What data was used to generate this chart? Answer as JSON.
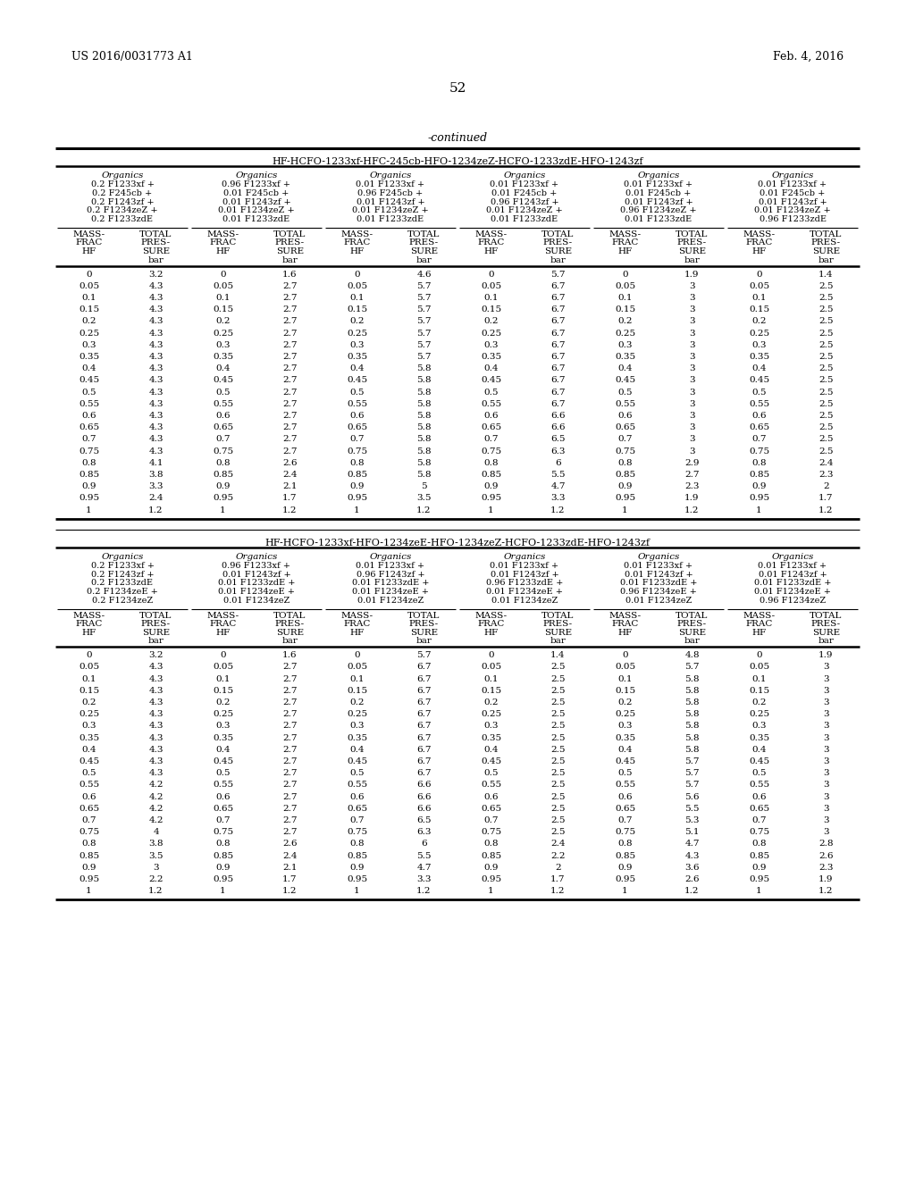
{
  "page_left": "US 2016/0031773 A1",
  "page_right": "Feb. 4, 2016",
  "page_num": "52",
  "continued": "-continued",
  "table1_title": "HF-HCFO-1233xf-HFC-245cb-HFO-1234zeZ-HCFO-1233zdE-HFO-1243zf",
  "table1_columns": [
    [
      "Organics",
      "0.2 F1233xf +",
      "0.2 F245cb +",
      "0.2 F1243zf +",
      "0.2 F1234zeZ +",
      "0.2 F1233zdE"
    ],
    [
      "Organics",
      "0.96 F1233xf +",
      "0.01 F245cb +",
      "0.01 F1243zf +",
      "0.01 F1234zeZ +",
      "0.01 F1233zdE"
    ],
    [
      "Organics",
      "0.01 F1233xf +",
      "0.96 F245cb +",
      "0.01 F1243zf +",
      "0.01 F1234zeZ +",
      "0.01 F1233zdE"
    ],
    [
      "Organics",
      "0.01 F1233xf +",
      "0.01 F245cb +",
      "0.96 F1243zf +",
      "0.01 F1234zeZ +",
      "0.01 F1233zdE"
    ],
    [
      "Organics",
      "0.01 F1233xf +",
      "0.01 F245cb +",
      "0.01 F1243zf +",
      "0.96 F1234zeZ +",
      "0.01 F1233zdE"
    ],
    [
      "Organics",
      "0.01 F1233xf +",
      "0.01 F245cb +",
      "0.01 F1243zf +",
      "0.01 F1234zeZ +",
      "0.96 F1233zdE"
    ]
  ],
  "table1_data": [
    [
      0,
      3.2,
      0,
      1.6,
      0,
      4.6,
      0,
      5.7,
      0,
      1.9,
      0,
      1.4
    ],
    [
      0.05,
      4.3,
      0.05,
      2.7,
      0.05,
      5.7,
      0.05,
      6.7,
      0.05,
      3.0,
      0.05,
      2.5
    ],
    [
      0.1,
      4.3,
      0.1,
      2.7,
      0.1,
      5.7,
      0.1,
      6.7,
      0.1,
      3.0,
      0.1,
      2.5
    ],
    [
      0.15,
      4.3,
      0.15,
      2.7,
      0.15,
      5.7,
      0.15,
      6.7,
      0.15,
      3.0,
      0.15,
      2.5
    ],
    [
      0.2,
      4.3,
      0.2,
      2.7,
      0.2,
      5.7,
      0.2,
      6.7,
      0.2,
      3.0,
      0.2,
      2.5
    ],
    [
      0.25,
      4.3,
      0.25,
      2.7,
      0.25,
      5.7,
      0.25,
      6.7,
      0.25,
      3.0,
      0.25,
      2.5
    ],
    [
      0.3,
      4.3,
      0.3,
      2.7,
      0.3,
      5.7,
      0.3,
      6.7,
      0.3,
      3.0,
      0.3,
      2.5
    ],
    [
      0.35,
      4.3,
      0.35,
      2.7,
      0.35,
      5.7,
      0.35,
      6.7,
      0.35,
      3.0,
      0.35,
      2.5
    ],
    [
      0.4,
      4.3,
      0.4,
      2.7,
      0.4,
      5.8,
      0.4,
      6.7,
      0.4,
      3.0,
      0.4,
      2.5
    ],
    [
      0.45,
      4.3,
      0.45,
      2.7,
      0.45,
      5.8,
      0.45,
      6.7,
      0.45,
      3.0,
      0.45,
      2.5
    ],
    [
      0.5,
      4.3,
      0.5,
      2.7,
      0.5,
      5.8,
      0.5,
      6.7,
      0.5,
      3.0,
      0.5,
      2.5
    ],
    [
      0.55,
      4.3,
      0.55,
      2.7,
      0.55,
      5.8,
      0.55,
      6.7,
      0.55,
      3.0,
      0.55,
      2.5
    ],
    [
      0.6,
      4.3,
      0.6,
      2.7,
      0.6,
      5.8,
      0.6,
      6.6,
      0.6,
      3.0,
      0.6,
      2.5
    ],
    [
      0.65,
      4.3,
      0.65,
      2.7,
      0.65,
      5.8,
      0.65,
      6.6,
      0.65,
      3.0,
      0.65,
      2.5
    ],
    [
      0.7,
      4.3,
      0.7,
      2.7,
      0.7,
      5.8,
      0.7,
      6.5,
      0.7,
      3.0,
      0.7,
      2.5
    ],
    [
      0.75,
      4.3,
      0.75,
      2.7,
      0.75,
      5.8,
      0.75,
      6.3,
      0.75,
      3.0,
      0.75,
      2.5
    ],
    [
      0.8,
      4.1,
      0.8,
      2.6,
      0.8,
      5.8,
      0.8,
      6.0,
      0.8,
      2.9,
      0.8,
      2.4
    ],
    [
      0.85,
      3.8,
      0.85,
      2.4,
      0.85,
      5.8,
      0.85,
      5.5,
      0.85,
      2.7,
      0.85,
      2.3
    ],
    [
      0.9,
      3.3,
      0.9,
      2.1,
      0.9,
      5.0,
      0.9,
      4.7,
      0.9,
      2.3,
      0.9,
      2.0
    ],
    [
      0.95,
      2.4,
      0.95,
      1.7,
      0.95,
      3.5,
      0.95,
      3.3,
      0.95,
      1.9,
      0.95,
      1.7
    ],
    [
      1,
      1.2,
      1,
      1.2,
      1,
      1.2,
      1,
      1.2,
      1,
      1.2,
      1,
      1.2
    ]
  ],
  "table2_title": "HF-HCFO-1233xf-HFO-1234zeE-HFO-1234zeZ-HCFO-1233zdE-HFO-1243zf",
  "table2_columns": [
    [
      "Organics",
      "0.2 F1233xf +",
      "0.2 F1243zf +",
      "0.2 F1233zdE",
      "0.2 F1234zeE +",
      "0.2 F1234zeZ"
    ],
    [
      "Organics",
      "0.96 F1233xf +",
      "0.01 F1243zf +",
      "0.01 F1233zdE +",
      "0.01 F1234zeE +",
      "0.01 F1234zeZ"
    ],
    [
      "Organics",
      "0.01 F1233xf +",
      "0.96 F1243zf +",
      "0.01 F1233zdE +",
      "0.01 F1234zeE +",
      "0.01 F1234zeZ"
    ],
    [
      "Organics",
      "0.01 F1233xf +",
      "0.01 F1243zf +",
      "0.96 F1233zdE +",
      "0.01 F1234zeE +",
      "0.01 F1234zeZ"
    ],
    [
      "Organics",
      "0.01 F1233xf +",
      "0.01 F1243zf +",
      "0.01 F1233zdE +",
      "0.96 F1234zeE +",
      "0.01 F1234zeZ"
    ],
    [
      "Organics",
      "0.01 F1233xf +",
      "0.01 F1243zf +",
      "0.01 F1233zdE +",
      "0.01 F1234zeE +",
      "0.96 F1234zeZ"
    ]
  ],
  "table2_data": [
    [
      0,
      3.2,
      0,
      1.6,
      0,
      5.7,
      0,
      1.4,
      0,
      4.8,
      0,
      1.9
    ],
    [
      0.05,
      4.3,
      0.05,
      2.7,
      0.05,
      6.7,
      0.05,
      2.5,
      0.05,
      5.7,
      0.05,
      3.0
    ],
    [
      0.1,
      4.3,
      0.1,
      2.7,
      0.1,
      6.7,
      0.1,
      2.5,
      0.1,
      5.8,
      0.1,
      3.0
    ],
    [
      0.15,
      4.3,
      0.15,
      2.7,
      0.15,
      6.7,
      0.15,
      2.5,
      0.15,
      5.8,
      0.15,
      3.0
    ],
    [
      0.2,
      4.3,
      0.2,
      2.7,
      0.2,
      6.7,
      0.2,
      2.5,
      0.2,
      5.8,
      0.2,
      3.0
    ],
    [
      0.25,
      4.3,
      0.25,
      2.7,
      0.25,
      6.7,
      0.25,
      2.5,
      0.25,
      5.8,
      0.25,
      3.0
    ],
    [
      0.3,
      4.3,
      0.3,
      2.7,
      0.3,
      6.7,
      0.3,
      2.5,
      0.3,
      5.8,
      0.3,
      3.0
    ],
    [
      0.35,
      4.3,
      0.35,
      2.7,
      0.35,
      6.7,
      0.35,
      2.5,
      0.35,
      5.8,
      0.35,
      3.0
    ],
    [
      0.4,
      4.3,
      0.4,
      2.7,
      0.4,
      6.7,
      0.4,
      2.5,
      0.4,
      5.8,
      0.4,
      3.0
    ],
    [
      0.45,
      4.3,
      0.45,
      2.7,
      0.45,
      6.7,
      0.45,
      2.5,
      0.45,
      5.7,
      0.45,
      3.0
    ],
    [
      0.5,
      4.3,
      0.5,
      2.7,
      0.5,
      6.7,
      0.5,
      2.5,
      0.5,
      5.7,
      0.5,
      3.0
    ],
    [
      0.55,
      4.2,
      0.55,
      2.7,
      0.55,
      6.6,
      0.55,
      2.5,
      0.55,
      5.7,
      0.55,
      3.0
    ],
    [
      0.6,
      4.2,
      0.6,
      2.7,
      0.6,
      6.6,
      0.6,
      2.5,
      0.6,
      5.6,
      0.6,
      3.0
    ],
    [
      0.65,
      4.2,
      0.65,
      2.7,
      0.65,
      6.6,
      0.65,
      2.5,
      0.65,
      5.5,
      0.65,
      3.0
    ],
    [
      0.7,
      4.2,
      0.7,
      2.7,
      0.7,
      6.5,
      0.7,
      2.5,
      0.7,
      5.3,
      0.7,
      3.0
    ],
    [
      0.75,
      4.0,
      0.75,
      2.7,
      0.75,
      6.3,
      0.75,
      2.5,
      0.75,
      5.1,
      0.75,
      3.0
    ],
    [
      0.8,
      3.8,
      0.8,
      2.6,
      0.8,
      6.0,
      0.8,
      2.4,
      0.8,
      4.7,
      0.8,
      2.8
    ],
    [
      0.85,
      3.5,
      0.85,
      2.4,
      0.85,
      5.5,
      0.85,
      2.2,
      0.85,
      4.3,
      0.85,
      2.6
    ],
    [
      0.9,
      3.0,
      0.9,
      2.1,
      0.9,
      4.7,
      0.9,
      2.0,
      0.9,
      3.6,
      0.9,
      2.3
    ],
    [
      0.95,
      2.2,
      0.95,
      1.7,
      0.95,
      3.3,
      0.95,
      1.7,
      0.95,
      2.6,
      0.95,
      1.9
    ],
    [
      1,
      1.2,
      1,
      1.2,
      1,
      1.2,
      1,
      1.2,
      1,
      1.2,
      1,
      1.2
    ]
  ]
}
